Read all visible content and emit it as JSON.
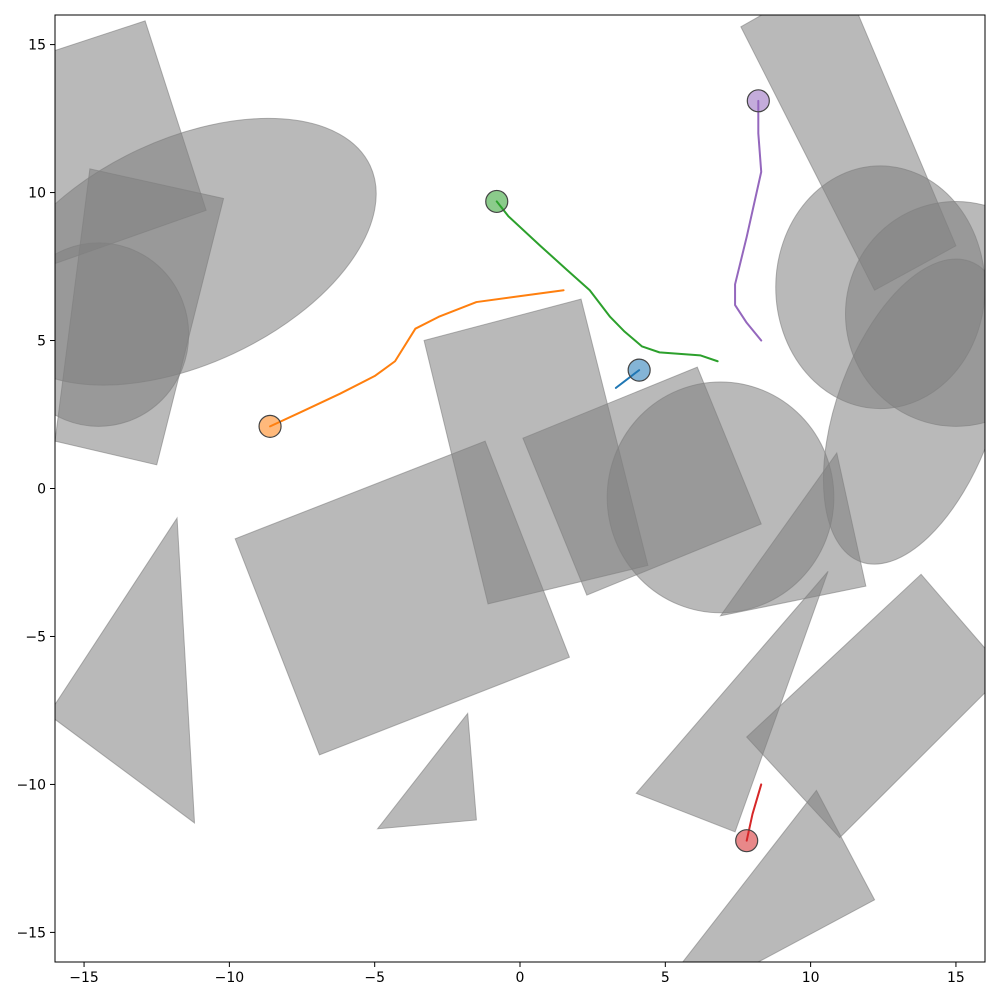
{
  "chart_data": {
    "type": "scatter",
    "title": "",
    "xlabel": "",
    "ylabel": "",
    "xlim": [
      -16,
      16
    ],
    "ylim": [
      -16,
      16
    ],
    "grid": false,
    "x_ticks": [
      -15,
      -10,
      -5,
      0,
      5,
      10,
      15
    ],
    "y_ticks": [
      -15,
      -10,
      -5,
      0,
      5,
      10,
      15
    ],
    "obstacle_color": "#808080",
    "obstacles": [
      {
        "shape": "polygon",
        "points": [
          [
            -16,
            14.8
          ],
          [
            -12.9,
            15.8
          ],
          [
            -10.8,
            9.4
          ],
          [
            -16,
            7.6
          ]
        ]
      },
      {
        "shape": "polygon",
        "points": [
          [
            -14.8,
            10.8
          ],
          [
            -10.2,
            9.8
          ],
          [
            -12.5,
            0.8
          ],
          [
            -16,
            1.6
          ]
        ]
      },
      {
        "shape": "ellipse",
        "cx": -14.5,
        "cy": 5.2,
        "rx": 3.1,
        "ry": 3.1,
        "angle": 0
      },
      {
        "shape": "ellipse",
        "cx": -11.5,
        "cy": 8.0,
        "rx": 7.0,
        "ry": 3.8,
        "angle": 25
      },
      {
        "shape": "polygon",
        "points": [
          [
            -11.8,
            -1.0
          ],
          [
            -11.2,
            -11.3
          ],
          [
            -16,
            -7.8
          ],
          [
            -16,
            -7.3
          ]
        ]
      },
      {
        "shape": "polygon",
        "points": [
          [
            -9.8,
            -1.7
          ],
          [
            -1.2,
            1.6
          ],
          [
            1.7,
            -5.7
          ],
          [
            -6.9,
            -9.0
          ]
        ]
      },
      {
        "shape": "polygon",
        "points": [
          [
            -1.8,
            -7.6
          ],
          [
            -1.5,
            -11.2
          ],
          [
            -4.9,
            -11.5
          ]
        ]
      },
      {
        "shape": "polygon",
        "points": [
          [
            -3.3,
            5.0
          ],
          [
            2.1,
            6.4
          ],
          [
            4.4,
            -2.6
          ],
          [
            -1.1,
            -3.9
          ]
        ]
      },
      {
        "shape": "polygon",
        "points": [
          [
            0.1,
            1.7
          ],
          [
            6.1,
            4.1
          ],
          [
            8.3,
            -1.2
          ],
          [
            2.3,
            -3.6
          ]
        ]
      },
      {
        "shape": "ellipse",
        "cx": 6.9,
        "cy": -0.3,
        "rx": 3.9,
        "ry": 3.9,
        "angle": 0
      },
      {
        "shape": "polygon",
        "points": [
          [
            10.9,
            1.2
          ],
          [
            11.9,
            -3.3
          ],
          [
            6.9,
            -4.3
          ]
        ]
      },
      {
        "shape": "polygon",
        "points": [
          [
            10.6,
            -2.8
          ],
          [
            7.4,
            -11.6
          ],
          [
            4.0,
            -10.3
          ]
        ]
      },
      {
        "shape": "polygon",
        "points": [
          [
            13.8,
            -2.9
          ],
          [
            16,
            -5.4
          ],
          [
            16,
            -6.9
          ],
          [
            11.0,
            -11.8
          ],
          [
            7.8,
            -8.4
          ]
        ]
      },
      {
        "shape": "polygon",
        "points": [
          [
            10.2,
            -10.2
          ],
          [
            12.2,
            -13.9
          ],
          [
            8.2,
            -16
          ],
          [
            5.6,
            -16
          ]
        ]
      },
      {
        "shape": "polygon",
        "points": [
          [
            7.6,
            15.6
          ],
          [
            11.0,
            17.5
          ],
          [
            15.0,
            8.2
          ],
          [
            12.2,
            6.7
          ]
        ]
      },
      {
        "shape": "ellipse",
        "cx": 12.4,
        "cy": 6.8,
        "rx": 3.6,
        "ry": 4.1,
        "angle": 0
      },
      {
        "shape": "ellipse",
        "cx": 15.0,
        "cy": 5.9,
        "rx": 3.8,
        "ry": 3.8,
        "angle": 0
      },
      {
        "shape": "ellipse",
        "cx": 13.6,
        "cy": 2.6,
        "rx": 2.7,
        "ry": 5.4,
        "angle": -20
      }
    ],
    "series": [
      {
        "color": "#1f77b4",
        "marker": [
          4.1,
          4.0
        ],
        "path": [
          [
            4.1,
            4.0
          ],
          [
            3.3,
            3.4
          ]
        ]
      },
      {
        "color": "#ff7f0e",
        "marker": [
          -8.6,
          2.1
        ],
        "path": [
          [
            -8.6,
            2.1
          ],
          [
            -7.5,
            2.6
          ],
          [
            -6.2,
            3.2
          ],
          [
            -5.0,
            3.8
          ],
          [
            -4.3,
            4.3
          ],
          [
            -3.6,
            5.4
          ],
          [
            -2.8,
            5.8
          ],
          [
            -1.5,
            6.3
          ],
          [
            0.0,
            6.5
          ],
          [
            1.5,
            6.7
          ]
        ]
      },
      {
        "color": "#2ca02c",
        "marker": [
          -0.8,
          9.7
        ],
        "path": [
          [
            -0.8,
            9.7
          ],
          [
            -0.4,
            9.2
          ],
          [
            0.7,
            8.2
          ],
          [
            1.6,
            7.4
          ],
          [
            2.4,
            6.7
          ],
          [
            3.1,
            5.8
          ],
          [
            3.6,
            5.3
          ],
          [
            4.2,
            4.8
          ],
          [
            4.8,
            4.6
          ],
          [
            6.2,
            4.5
          ],
          [
            6.8,
            4.3
          ]
        ]
      },
      {
        "color": "#d62728",
        "marker": [
          7.8,
          -11.9
        ],
        "path": [
          [
            7.8,
            -11.9
          ],
          [
            8.0,
            -11.0
          ],
          [
            8.3,
            -10.0
          ]
        ]
      },
      {
        "color": "#9467bd",
        "marker": [
          8.2,
          13.1
        ],
        "path": [
          [
            8.2,
            13.1
          ],
          [
            8.2,
            12.0
          ],
          [
            8.3,
            10.7
          ],
          [
            7.8,
            8.5
          ],
          [
            7.4,
            6.9
          ],
          [
            7.4,
            6.2
          ],
          [
            7.8,
            5.6
          ],
          [
            8.3,
            5.0
          ]
        ]
      }
    ]
  }
}
